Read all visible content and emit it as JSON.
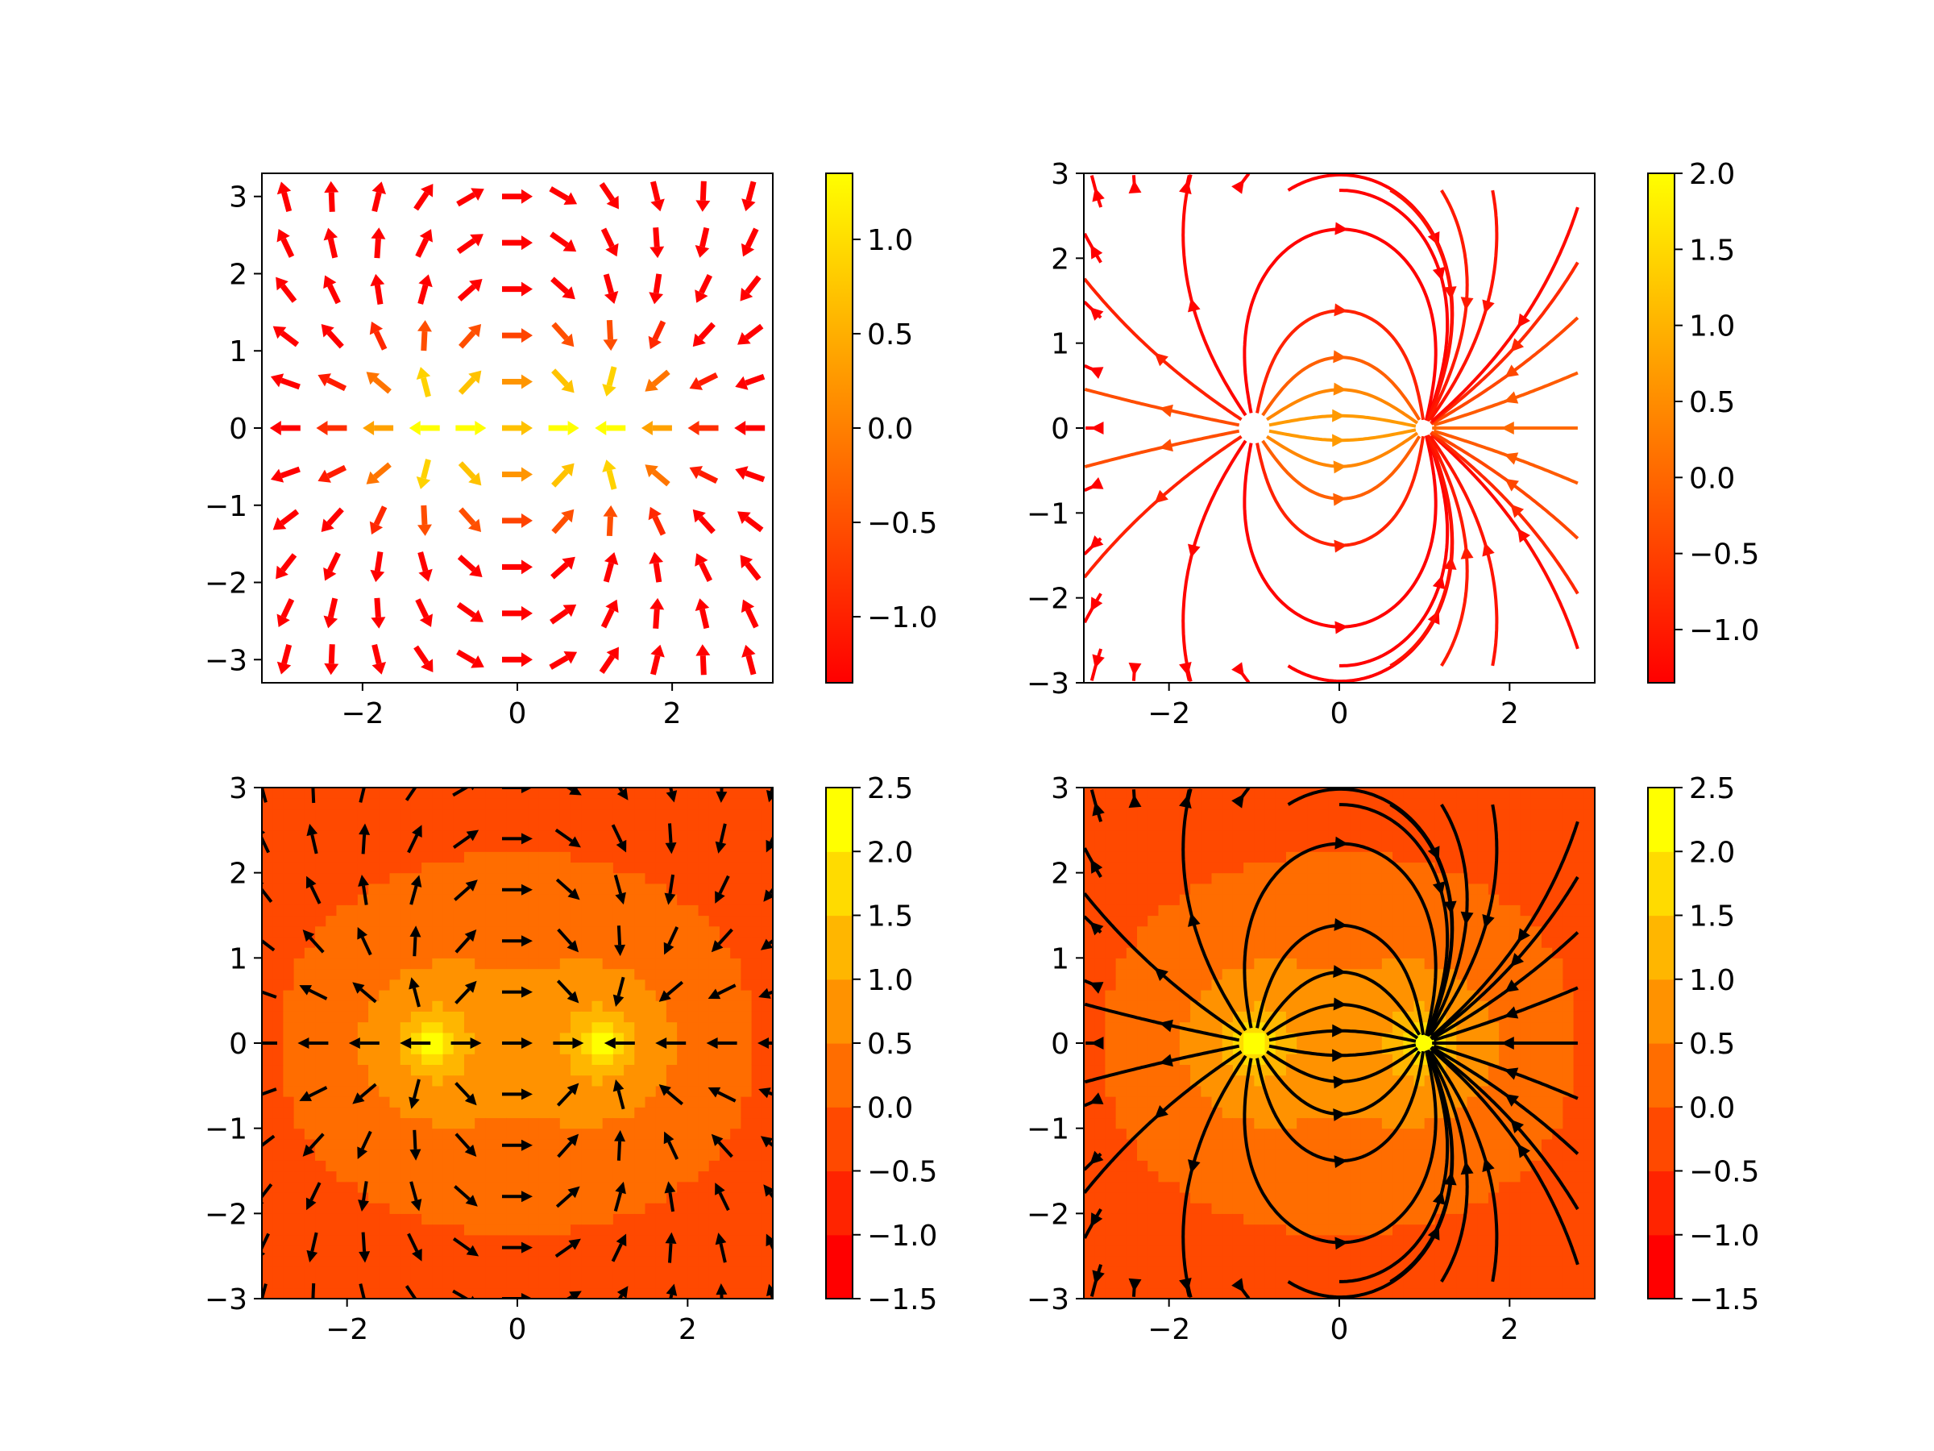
{
  "chart_data": [
    {
      "type": "quiver",
      "panel": "top-left",
      "description": "Vector field of an electric dipole (charge +1 at (-1,0), -1 at (1,0)); arrows colored by log magnitude",
      "field": "dipole",
      "charges": [
        {
          "q": 1,
          "x": -1,
          "y": 0
        },
        {
          "q": -1,
          "x": 1,
          "y": 0
        }
      ],
      "xlim": [
        -3.3,
        3.3
      ],
      "ylim": [
        -3.3,
        3.3
      ],
      "xticks": [
        -2,
        0,
        2
      ],
      "yticks": [
        -3,
        -2,
        -1,
        0,
        1,
        2,
        3
      ],
      "grid_n": 11,
      "arrow_color": "colormap",
      "background": "white",
      "colormap": "autumn",
      "colorbar": {
        "min": -1.35,
        "max": 1.35,
        "ticks": [
          -1.0,
          -0.5,
          0.0,
          0.5,
          1.0
        ]
      }
    },
    {
      "type": "streamplot",
      "panel": "top-right",
      "field": "dipole",
      "xlim": [
        -3,
        3
      ],
      "ylim": [
        -3,
        3
      ],
      "xticks": [
        -2,
        0,
        2
      ],
      "yticks": [
        -3,
        -2,
        -1,
        0,
        1,
        2,
        3
      ],
      "line_color": "colormap",
      "background": "white",
      "colormap": "autumn",
      "colorbar": {
        "min": -1.35,
        "max": 2.0,
        "ticks": [
          -1.0,
          -0.5,
          0.0,
          0.5,
          1.0,
          1.5,
          2.0
        ]
      }
    },
    {
      "type": "quiver",
      "panel": "bottom-left",
      "field": "dipole",
      "xlim": [
        -3,
        3
      ],
      "ylim": [
        -3,
        3
      ],
      "xticks": [
        -2,
        0,
        2
      ],
      "yticks": [
        -3,
        -2,
        -1,
        0,
        1,
        2,
        3
      ],
      "grid_n": 11,
      "arrow_color": "#000000",
      "background": "filled-contour",
      "colormap": "autumn",
      "colorbar": {
        "min": -1.5,
        "max": 2.5,
        "ticks": [
          -1.5,
          -1.0,
          -0.5,
          0.0,
          0.5,
          1.0,
          1.5,
          2.0,
          2.5
        ],
        "discrete": true
      }
    },
    {
      "type": "streamplot",
      "panel": "bottom-right",
      "field": "dipole",
      "xlim": [
        -3,
        3
      ],
      "ylim": [
        -3,
        3
      ],
      "xticks": [
        -2,
        0,
        2
      ],
      "yticks": [
        -3,
        -2,
        -1,
        0,
        1,
        2,
        3
      ],
      "line_color": "#000000",
      "background": "filled-contour",
      "colormap": "autumn",
      "colorbar": {
        "min": -1.5,
        "max": 2.5,
        "ticks": [
          -1.5,
          -1.0,
          -0.5,
          0.0,
          0.5,
          1.0,
          1.5,
          2.0,
          2.5
        ],
        "discrete": true
      }
    }
  ],
  "colors": {
    "autumn_low": "#ff0000",
    "autumn_high": "#ffff00",
    "axes": "#000000"
  }
}
